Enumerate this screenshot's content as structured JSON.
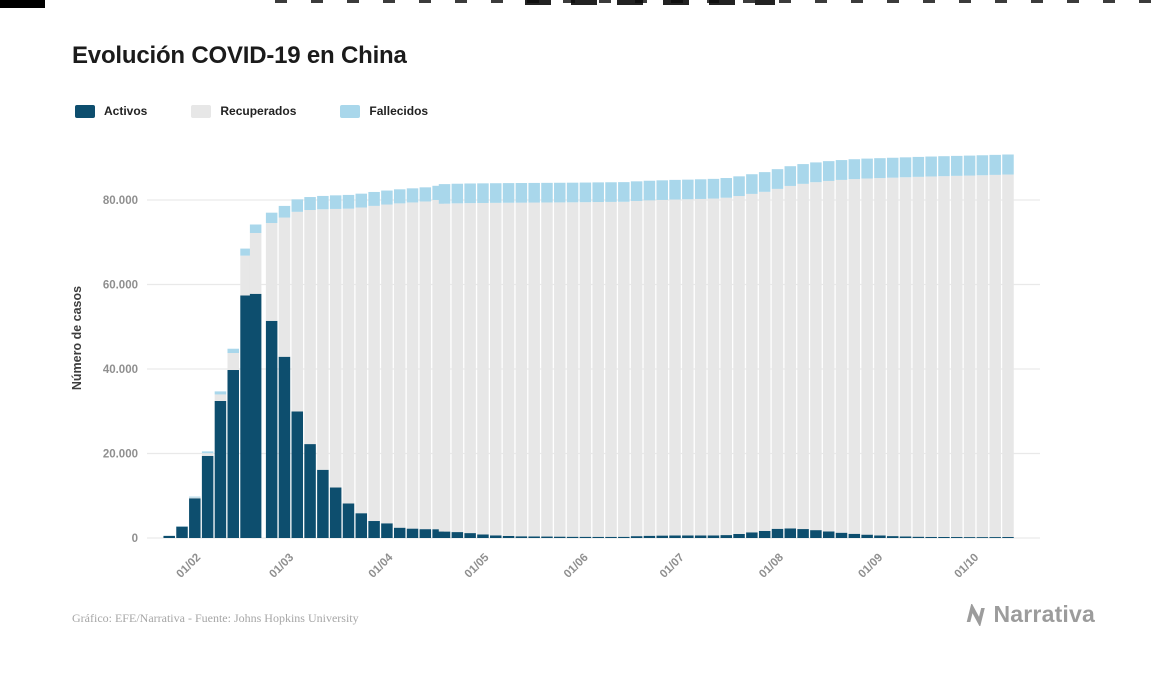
{
  "footer": {
    "credit": "Gráfico: EFE/Narrativa - Fuente: Johns Hopkins University"
  },
  "logo": {
    "text": "Narrativa"
  },
  "chart_data": {
    "type": "bar",
    "stacked": true,
    "title": "Evolución COVID-19 en China",
    "xlabel": "",
    "ylabel": "Número de casos",
    "ylim": [
      0,
      92000
    ],
    "grid": true,
    "legend_position": "top-left",
    "x_domain": [
      "2020-01-16",
      "2020-10-20"
    ],
    "series": [
      {
        "key": "activos",
        "name": "Activos",
        "color": "#0d4e6e"
      },
      {
        "key": "recuperados",
        "name": "Recuperados",
        "color": "#e7e7e7"
      },
      {
        "key": "fallecidos",
        "name": "Fallecidos",
        "color": "#a9d7eb"
      }
    ],
    "y_ticks": [
      {
        "value": 0,
        "label": "0"
      },
      {
        "value": 20000,
        "label": "20.000"
      },
      {
        "value": 40000,
        "label": "40.000"
      },
      {
        "value": 60000,
        "label": "60.000"
      },
      {
        "value": 80000,
        "label": "80.000"
      }
    ],
    "x_ticks": [
      {
        "date": "2020-02-01",
        "label": "01/02"
      },
      {
        "date": "2020-03-01",
        "label": "01/03"
      },
      {
        "date": "2020-04-01",
        "label": "01/04"
      },
      {
        "date": "2020-05-01",
        "label": "01/05"
      },
      {
        "date": "2020-06-01",
        "label": "01/06"
      },
      {
        "date": "2020-07-01",
        "label": "01/07"
      },
      {
        "date": "2020-08-01",
        "label": "01/08"
      },
      {
        "date": "2020-09-01",
        "label": "01/09"
      },
      {
        "date": "2020-10-01",
        "label": "01/10"
      }
    ],
    "x": [
      "2020-01-22",
      "2020-01-26",
      "2020-01-30",
      "2020-02-03",
      "2020-02-07",
      "2020-02-11",
      "2020-02-15",
      "2020-02-18",
      "2020-02-23",
      "2020-02-27",
      "2020-03-02",
      "2020-03-06",
      "2020-03-10",
      "2020-03-14",
      "2020-03-18",
      "2020-03-22",
      "2020-03-26",
      "2020-03-30",
      "2020-04-03",
      "2020-04-07",
      "2020-04-11",
      "2020-04-15",
      "2020-04-17",
      "2020-04-21",
      "2020-04-25",
      "2020-04-29",
      "2020-05-03",
      "2020-05-07",
      "2020-05-11",
      "2020-05-15",
      "2020-05-19",
      "2020-05-23",
      "2020-05-27",
      "2020-05-31",
      "2020-06-04",
      "2020-06-08",
      "2020-06-12",
      "2020-06-16",
      "2020-06-20",
      "2020-06-24",
      "2020-06-28",
      "2020-07-02",
      "2020-07-06",
      "2020-07-10",
      "2020-07-14",
      "2020-07-18",
      "2020-07-22",
      "2020-07-26",
      "2020-07-30",
      "2020-08-03",
      "2020-08-07",
      "2020-08-11",
      "2020-08-15",
      "2020-08-19",
      "2020-08-23",
      "2020-08-27",
      "2020-08-31",
      "2020-09-04",
      "2020-09-08",
      "2020-09-12",
      "2020-09-16",
      "2020-09-20",
      "2020-09-24",
      "2020-09-28",
      "2020-10-02",
      "2020-10-06",
      "2020-10-10"
    ],
    "activos": [
      503,
      2690,
      9400,
      19440,
      32430,
      39760,
      57400,
      57800,
      51400,
      42900,
      29940,
      22230,
      16150,
      11950,
      8170,
      5870,
      4020,
      3480,
      2440,
      2220,
      2100,
      2085,
      1520,
      1405,
      1165,
      845,
      625,
      485,
      415,
      375,
      345,
      325,
      304,
      294,
      283,
      282,
      292,
      442,
      531,
      570,
      609,
      608,
      607,
      616,
      694,
      962,
      1340,
      1686,
      2180,
      2275,
      2120,
      1865,
      1558,
      1252,
      997,
      792,
      598,
      455,
      362,
      309,
      266,
      243,
      231,
      219,
      217,
      225,
      233
    ],
    "recuperados": [
      28,
      50,
      187,
      634,
      1548,
      4024,
      9434,
      14394,
      23155,
      32953,
      47264,
      55400,
      61650,
      65932,
      69780,
      72356,
      74585,
      75450,
      76760,
      77200,
      77550,
      77920,
      77600,
      77805,
      78100,
      78450,
      78700,
      78870,
      78960,
      79020,
      79070,
      79110,
      79150,
      79190,
      79240,
      79270,
      79290,
      79330,
      79380,
      79440,
      79500,
      79560,
      79640,
      79730,
      79850,
      79980,
      80100,
      80250,
      80450,
      81050,
      81700,
      82350,
      82950,
      83500,
      83950,
      84300,
      84590,
      84830,
      85020,
      85170,
      85300,
      85400,
      85480,
      85560,
      85640,
      85720,
      85800
    ],
    "fallecidos": [
      17,
      80,
      213,
      426,
      722,
      1016,
      1666,
      2006,
      2445,
      2747,
      2946,
      3070,
      3160,
      3218,
      3250,
      3274,
      3295,
      3310,
      3330,
      3340,
      3350,
      3355,
      4640,
      4640,
      4645,
      4645,
      4645,
      4645,
      4645,
      4645,
      4645,
      4645,
      4646,
      4646,
      4647,
      4648,
      4648,
      4648,
      4649,
      4650,
      4651,
      4652,
      4653,
      4654,
      4656,
      4658,
      4660,
      4664,
      4670,
      4675,
      4680,
      4685,
      4692,
      4698,
      4703,
      4708,
      4712,
      4715,
      4718,
      4721,
      4724,
      4727,
      4729,
      4731,
      4733,
      4735,
      4737
    ]
  }
}
